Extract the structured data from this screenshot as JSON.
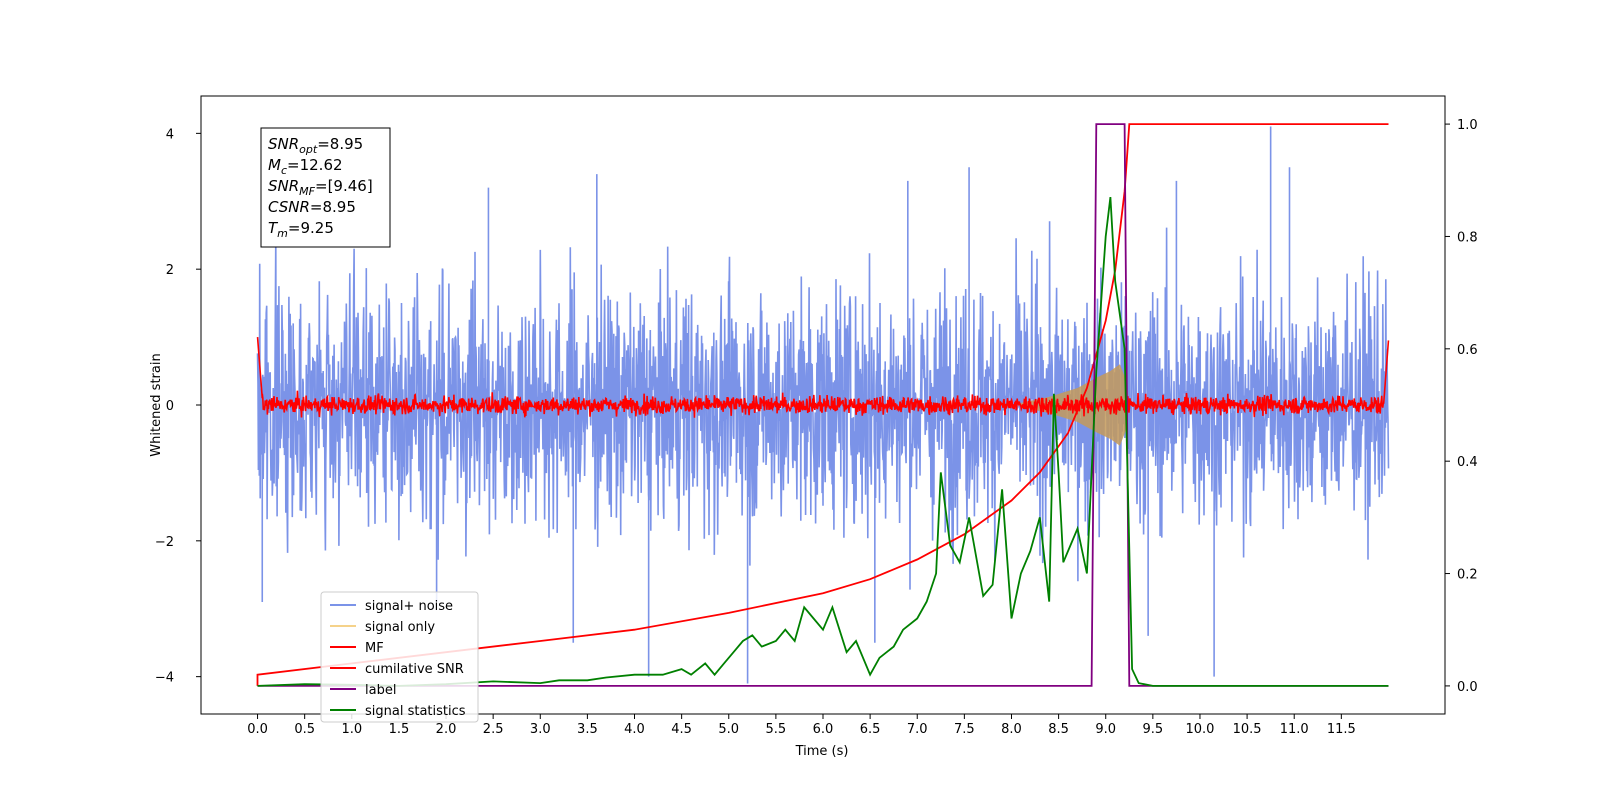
{
  "chart_data": {
    "type": "line",
    "xlabel": "Time (s)",
    "ylabel": "Whitened strain",
    "xlim": [
      -0.6,
      12.6
    ],
    "ylim": [
      -4.55,
      4.55
    ],
    "y2lim": [
      -0.05,
      1.05
    ],
    "x_ticks": [
      0.0,
      0.5,
      1.0,
      1.5,
      2.0,
      2.5,
      3.0,
      3.5,
      4.0,
      4.5,
      5.0,
      5.5,
      6.0,
      6.5,
      7.0,
      7.5,
      8.0,
      8.5,
      9.0,
      9.5,
      10.0,
      10.5,
      11.0,
      11.5
    ],
    "x_tick_labels": [
      "0.0",
      "0.5",
      "1.0",
      "1.5",
      "2.0",
      "2.5",
      "3.0",
      "3.5",
      "4.0",
      "4.5",
      "5.0",
      "5.5",
      "6.0",
      "6.5",
      "7.0",
      "7.5",
      "8.0",
      "8.5",
      "9.0",
      "9.5",
      "10.0",
      "10.5",
      "11.0",
      "11.5"
    ],
    "y_ticks": [
      4,
      2,
      0,
      -2,
      -4
    ],
    "y_tick_labels": [
      "4",
      "2",
      "0",
      "−2",
      "−4"
    ],
    "y2_ticks": [
      1.0,
      0.8,
      0.6,
      0.4,
      0.2,
      0.0
    ],
    "y2_tick_labels": [
      "1.0",
      "0.8",
      "0.6",
      "0.4",
      "0.2",
      "0.0"
    ],
    "grid": false,
    "legend_position": "lower-left",
    "series": [
      {
        "name": "signal+ noise",
        "color": "#7b93e8",
        "axis": "left",
        "description": "dense noise envelope",
        "envelope": {
          "x_range": [
            0.0,
            12.0
          ],
          "typical_abs": 1.1,
          "max_abs": 3.4
        },
        "spikes": [
          [
            2.45,
            3.2
          ],
          [
            3.6,
            3.4
          ],
          [
            6.9,
            3.3
          ],
          [
            7.55,
            3.5
          ],
          [
            9.75,
            3.3
          ],
          [
            10.75,
            4.1
          ],
          [
            10.95,
            3.5
          ],
          [
            0.05,
            -2.9
          ],
          [
            4.15,
            -4.0
          ],
          [
            5.2,
            -4.1
          ],
          [
            10.15,
            -4.0
          ],
          [
            9.45,
            -3.4
          ],
          [
            6.55,
            -3.5
          ],
          [
            3.35,
            -3.5
          ],
          [
            1.9,
            -2.9
          ]
        ]
      },
      {
        "name": "signal only",
        "color": "#e8b04a",
        "axis": "left",
        "description": "chirp signal",
        "points": [
          [
            8.1,
            0.03
          ],
          [
            8.4,
            0.12
          ],
          [
            8.7,
            0.25
          ],
          [
            8.9,
            0.4
          ],
          [
            9.05,
            0.5
          ],
          [
            9.15,
            0.6
          ],
          [
            9.22,
            0.35
          ],
          [
            9.25,
            0.0
          ]
        ]
      },
      {
        "name": "MF",
        "color": "#ff0000",
        "axis": "left",
        "description": "matched filter output",
        "envelope": {
          "x_range": [
            0.0,
            12.0
          ],
          "typical_abs": 0.12,
          "max_abs": 0.3
        },
        "edges": [
          [
            0.0,
            1.0
          ],
          [
            0.05,
            0.1
          ],
          [
            11.95,
            0.1
          ],
          [
            12.0,
            0.95
          ]
        ]
      },
      {
        "name": "cumilative SNR",
        "color": "#ff0000",
        "axis": "right",
        "points": [
          [
            0.0,
            0.0
          ],
          [
            0.0,
            0.02
          ],
          [
            1.0,
            0.04
          ],
          [
            2.0,
            0.06
          ],
          [
            3.0,
            0.08
          ],
          [
            4.0,
            0.1
          ],
          [
            5.0,
            0.13
          ],
          [
            6.0,
            0.165
          ],
          [
            6.5,
            0.19
          ],
          [
            7.0,
            0.225
          ],
          [
            7.5,
            0.27
          ],
          [
            8.0,
            0.33
          ],
          [
            8.3,
            0.38
          ],
          [
            8.6,
            0.45
          ],
          [
            8.8,
            0.53
          ],
          [
            9.0,
            0.65
          ],
          [
            9.1,
            0.74
          ],
          [
            9.2,
            0.88
          ],
          [
            9.25,
            1.0
          ],
          [
            12.0,
            1.0
          ]
        ]
      },
      {
        "name": "label",
        "color": "#800080",
        "axis": "right",
        "points": [
          [
            0.0,
            0.0
          ],
          [
            8.85,
            0.0
          ],
          [
            8.9,
            1.0
          ],
          [
            9.2,
            1.0
          ],
          [
            9.25,
            0.0
          ],
          [
            12.0,
            0.0
          ]
        ]
      },
      {
        "name": "signal statistics",
        "color": "#008000",
        "axis": "right",
        "points": [
          [
            0.0,
            0.0
          ],
          [
            0.5,
            0.003
          ],
          [
            1.0,
            0.002
          ],
          [
            1.5,
            0.0
          ],
          [
            2.0,
            0.003
          ],
          [
            2.5,
            0.008
          ],
          [
            3.0,
            0.005
          ],
          [
            3.2,
            0.01
          ],
          [
            3.5,
            0.01
          ],
          [
            3.7,
            0.015
          ],
          [
            4.0,
            0.02
          ],
          [
            4.15,
            0.02
          ],
          [
            4.3,
            0.02
          ],
          [
            4.5,
            0.03
          ],
          [
            4.6,
            0.02
          ],
          [
            4.75,
            0.04
          ],
          [
            4.85,
            0.02
          ],
          [
            4.95,
            0.04
          ],
          [
            5.05,
            0.06
          ],
          [
            5.15,
            0.08
          ],
          [
            5.25,
            0.09
          ],
          [
            5.35,
            0.07
          ],
          [
            5.5,
            0.08
          ],
          [
            5.6,
            0.1
          ],
          [
            5.7,
            0.08
          ],
          [
            5.8,
            0.14
          ],
          [
            5.9,
            0.12
          ],
          [
            6.0,
            0.1
          ],
          [
            6.1,
            0.14
          ],
          [
            6.25,
            0.06
          ],
          [
            6.35,
            0.08
          ],
          [
            6.5,
            0.02
          ],
          [
            6.6,
            0.05
          ],
          [
            6.75,
            0.07
          ],
          [
            6.85,
            0.1
          ],
          [
            7.0,
            0.12
          ],
          [
            7.1,
            0.15
          ],
          [
            7.2,
            0.2
          ],
          [
            7.25,
            0.38
          ],
          [
            7.35,
            0.25
          ],
          [
            7.45,
            0.22
          ],
          [
            7.55,
            0.3
          ],
          [
            7.7,
            0.16
          ],
          [
            7.8,
            0.18
          ],
          [
            7.9,
            0.35
          ],
          [
            8.0,
            0.12
          ],
          [
            8.1,
            0.2
          ],
          [
            8.2,
            0.24
          ],
          [
            8.3,
            0.3
          ],
          [
            8.4,
            0.15
          ],
          [
            8.45,
            0.52
          ],
          [
            8.5,
            0.38
          ],
          [
            8.55,
            0.22
          ],
          [
            8.6,
            0.24
          ],
          [
            8.7,
            0.28
          ],
          [
            8.8,
            0.2
          ],
          [
            8.9,
            0.56
          ],
          [
            9.0,
            0.8
          ],
          [
            9.05,
            0.87
          ],
          [
            9.1,
            0.72
          ],
          [
            9.2,
            0.6
          ],
          [
            9.28,
            0.03
          ],
          [
            9.35,
            0.005
          ],
          [
            9.5,
            0.0
          ],
          [
            12.0,
            0.0
          ]
        ]
      }
    ],
    "annotation": [
      {
        "name": "SNR",
        "sub": "opt",
        "value": "=8.95"
      },
      {
        "name": "M",
        "sub": "c",
        "value": "=12.62"
      },
      {
        "name": "SNR",
        "sub": "MF",
        "value": "=[9.46]"
      },
      {
        "name": "CSNR",
        "sub": "",
        "value": "=8.95"
      },
      {
        "name": "T",
        "sub": "m",
        "value": "=9.25"
      }
    ]
  }
}
